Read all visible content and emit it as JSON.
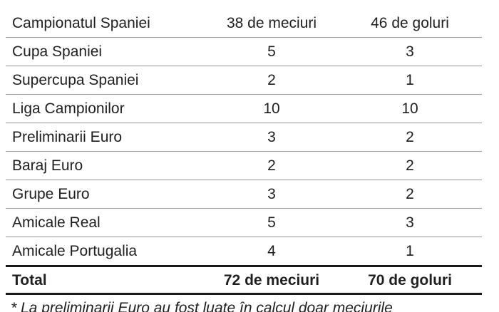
{
  "table": {
    "rows": [
      {
        "name": "Campionatul Spaniei",
        "matches": "38 de meciuri",
        "goals": "46 de goluri"
      },
      {
        "name": "Cupa Spaniei",
        "matches": "5",
        "goals": "3"
      },
      {
        "name": "Supercupa Spaniei",
        "matches": "2",
        "goals": "1"
      },
      {
        "name": "Liga Campionilor",
        "matches": "10",
        "goals": "10"
      },
      {
        "name": "Preliminarii Euro",
        "matches": "3",
        "goals": "2"
      },
      {
        "name": "Baraj Euro",
        "matches": "2",
        "goals": "2"
      },
      {
        "name": "Grupe Euro",
        "matches": "3",
        "goals": "2"
      },
      {
        "name": "Amicale Real",
        "matches": "5",
        "goals": "3"
      },
      {
        "name": "Amicale Portugalia",
        "matches": "4",
        "goals": "1"
      }
    ],
    "total": {
      "name": "Total",
      "matches": "72 de meciuri",
      "goals": "70 de goluri"
    }
  },
  "footnote": "* La preliminarii Euro au fost luate în calcul doar meciurile"
}
